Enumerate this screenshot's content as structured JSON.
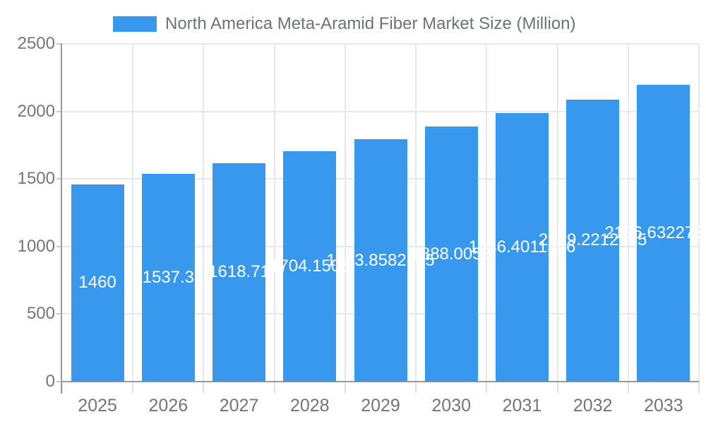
{
  "legend": {
    "label": "North America Meta-Aramid Fiber Market Size (Million)"
  },
  "chart_data": {
    "type": "bar",
    "title": "North America Meta-Aramid Fiber Market Size (Million)",
    "categories": [
      "2025",
      "2026",
      "2027",
      "2028",
      "2029",
      "2030",
      "2031",
      "2032",
      "2033"
    ],
    "values": [
      1460,
      1537.3,
      1618.71,
      1704.1506,
      1793.8582745,
      1888.0053,
      1986.4011556,
      2089.2212175,
      2196.63227312
    ],
    "value_labels": [
      "1460",
      "1537.3",
      "1618.71",
      "1704.1506",
      "1793.8582745",
      "1888.0053",
      "1986.4011556",
      "2089.2212175",
      "2196.63227312"
    ],
    "xlabel": "",
    "ylabel": "",
    "ylim": [
      0,
      2500
    ],
    "yticks": [
      0,
      500,
      1000,
      1500,
      2000,
      2500
    ],
    "grid": true,
    "legend_position": "top",
    "bar_color": "#3899ec",
    "value_label_color": "#ffffff",
    "axis_label_color": "#757575",
    "grid_color": "#e8e8e8",
    "axis_line_color": "#9a9a9a"
  }
}
